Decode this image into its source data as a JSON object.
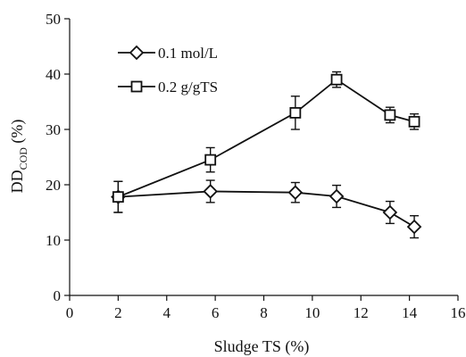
{
  "chart_data": {
    "type": "line",
    "xlabel": "Sludge TS (%)",
    "ylabel_main": "DD",
    "ylabel_sub": "COD",
    "ylabel_unit": " (%)",
    "xlim": [
      0,
      16
    ],
    "ylim": [
      0,
      50
    ],
    "xticks": [
      0,
      2,
      4,
      6,
      8,
      10,
      12,
      14,
      16
    ],
    "yticks": [
      0,
      10,
      20,
      30,
      40,
      50
    ],
    "grid": false,
    "legend_position": "top-left",
    "series": [
      {
        "name": "0.1 mol/L",
        "marker": "diamond",
        "x": [
          2,
          5.8,
          9.3,
          11,
          13.2,
          14.2
        ],
        "y": [
          17.8,
          18.8,
          18.6,
          17.9,
          15,
          12.4
        ],
        "err": [
          2.8,
          2,
          1.8,
          2,
          2,
          2
        ]
      },
      {
        "name": "0.2 g/gTS",
        "marker": "square",
        "x": [
          2,
          5.8,
          9.3,
          11,
          13.2,
          14.2
        ],
        "y": [
          17.8,
          24.5,
          33,
          39,
          32.6,
          31.4
        ],
        "err": [
          2.8,
          2.2,
          3,
          1.4,
          1.4,
          1.4
        ]
      }
    ]
  }
}
